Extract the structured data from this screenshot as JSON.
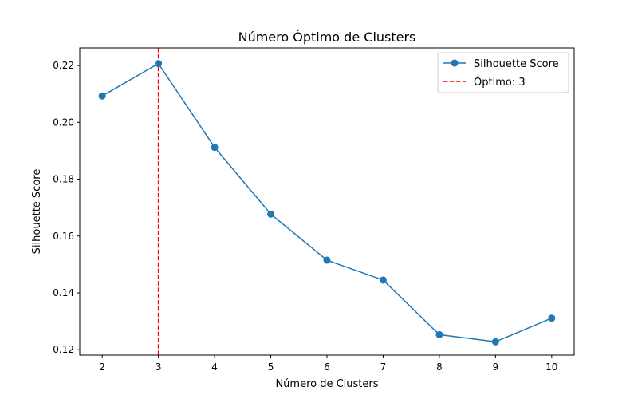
{
  "chart_data": {
    "type": "line",
    "title": "Número Óptimo de Clusters",
    "xlabel": "Número de Clusters",
    "ylabel": "Silhouette Score",
    "x": [
      2,
      3,
      4,
      5,
      6,
      7,
      8,
      9,
      10
    ],
    "series": [
      {
        "name": "Silhouette Score",
        "values": [
          0.2093,
          0.2207,
          0.1912,
          0.1677,
          0.1515,
          0.1445,
          0.1253,
          0.1228,
          0.1311
        ],
        "color": "#1f77b4",
        "marker": "circle"
      }
    ],
    "reference_line": {
      "name": "Óptimo: 3",
      "x": 3,
      "color": "#ff0000",
      "style": "dashed"
    },
    "xticks": [
      2,
      3,
      4,
      5,
      6,
      7,
      8,
      9,
      10
    ],
    "yticks": [
      0.12,
      0.14,
      0.16,
      0.18,
      0.2,
      0.22
    ],
    "ytick_labels": [
      "0.12",
      "0.14",
      "0.16",
      "0.18",
      "0.20",
      "0.22"
    ],
    "xlim": [
      1.6,
      10.4
    ],
    "ylim": [
      0.1181,
      0.2262
    ],
    "grid": false,
    "legend_position": "top-right"
  }
}
